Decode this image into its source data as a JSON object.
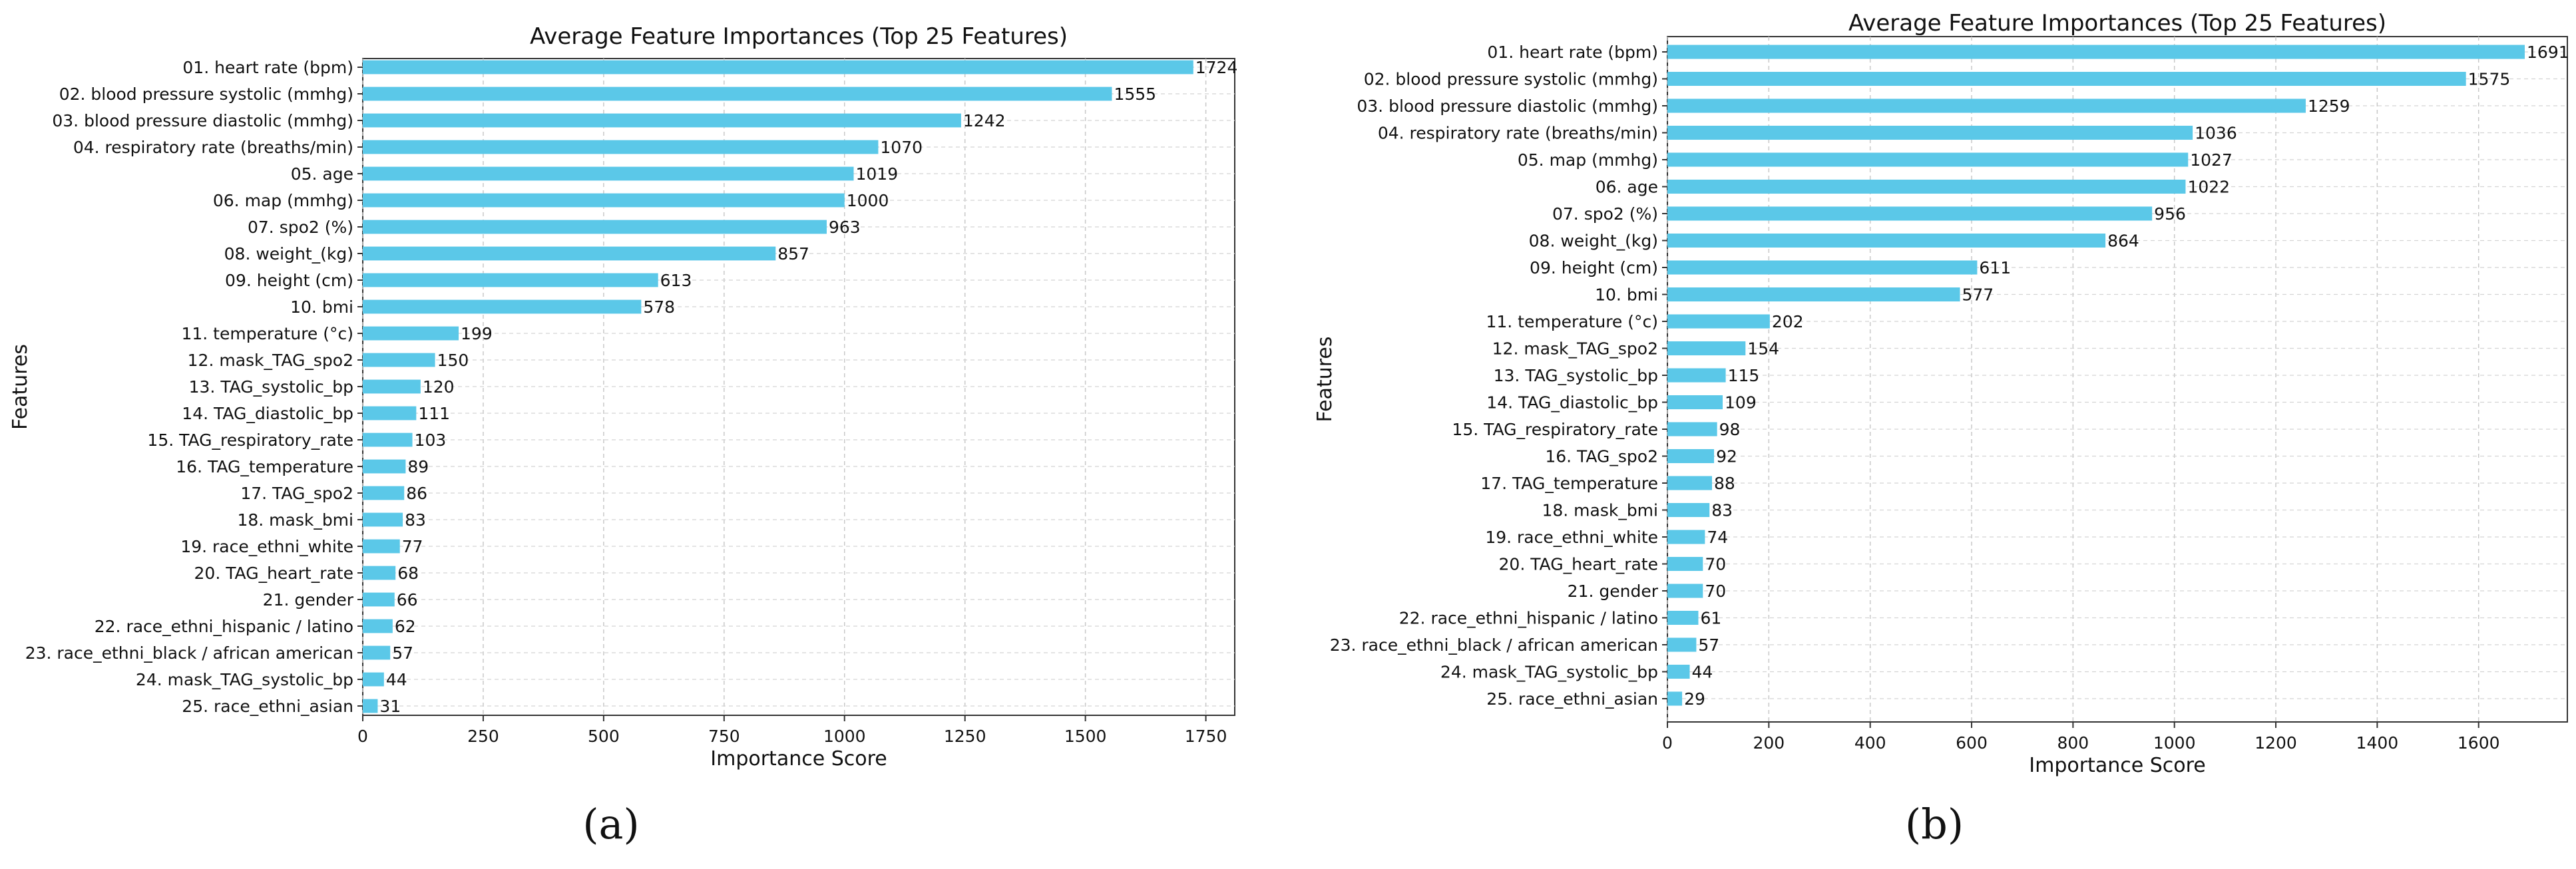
{
  "chart_data": [
    {
      "type": "bar",
      "orientation": "horizontal",
      "panel_label": "(a)",
      "title": "Average Feature Importances (Top 25 Features)",
      "xlabel": "Importance Score",
      "ylabel": "Features",
      "xlim": [
        0,
        1810
      ],
      "xticks": [
        0,
        250,
        500,
        750,
        1000,
        1250,
        1500,
        1750
      ],
      "grid": true,
      "bar_color": "#5bc8e8",
      "categories": [
        "01. heart rate (bpm)",
        "02. blood pressure systolic (mmhg)",
        "03. blood pressure diastolic (mmhg)",
        "04. respiratory rate (breaths/min)",
        "05. age",
        "06. map (mmhg)",
        "07. spo2 (%)",
        "08. weight_(kg)",
        "09. height (cm)",
        "10. bmi",
        "11. temperature (°c)",
        "12. mask_TAG_spo2",
        "13. TAG_systolic_bp",
        "14. TAG_diastolic_bp",
        "15. TAG_respiratory_rate",
        "16. TAG_temperature",
        "17. TAG_spo2",
        "18. mask_bmi",
        "19. race_ethni_white",
        "20. TAG_heart_rate",
        "21. gender",
        "22. race_ethni_hispanic / latino",
        "23. race_ethni_black / african american",
        "24. mask_TAG_systolic_bp",
        "25. race_ethni_asian"
      ],
      "values": [
        1724,
        1555,
        1242,
        1070,
        1019,
        1000,
        963,
        857,
        613,
        578,
        199,
        150,
        120,
        111,
        103,
        89,
        86,
        83,
        77,
        68,
        66,
        62,
        57,
        44,
        31
      ]
    },
    {
      "type": "bar",
      "orientation": "horizontal",
      "panel_label": "(b)",
      "title": "Average Feature Importances (Top 25 Features)",
      "xlabel": "Importance Score",
      "ylabel": "Features",
      "xlim": [
        0,
        1775
      ],
      "xticks": [
        0,
        200,
        400,
        600,
        800,
        1000,
        1200,
        1400,
        1600
      ],
      "grid": true,
      "bar_color": "#5bc8e8",
      "categories": [
        "01. heart rate (bpm)",
        "02. blood pressure systolic (mmhg)",
        "03. blood pressure diastolic (mmhg)",
        "04. respiratory rate (breaths/min)",
        "05. map (mmhg)",
        "06. age",
        "07. spo2 (%)",
        "08. weight_(kg)",
        "09. height (cm)",
        "10. bmi",
        "11. temperature (°c)",
        "12. mask_TAG_spo2",
        "13. TAG_systolic_bp",
        "14. TAG_diastolic_bp",
        "15. TAG_respiratory_rate",
        "16. TAG_spo2",
        "17. TAG_temperature",
        "18. mask_bmi",
        "19. race_ethni_white",
        "20. TAG_heart_rate",
        "21. gender",
        "22. race_ethni_hispanic / latino",
        "23. race_ethni_black / african american",
        "24. mask_TAG_systolic_bp",
        "25. race_ethni_asian"
      ],
      "values": [
        1691,
        1575,
        1259,
        1036,
        1027,
        1022,
        956,
        864,
        611,
        577,
        202,
        154,
        115,
        109,
        98,
        92,
        88,
        83,
        74,
        70,
        70,
        61,
        57,
        44,
        29
      ]
    }
  ]
}
